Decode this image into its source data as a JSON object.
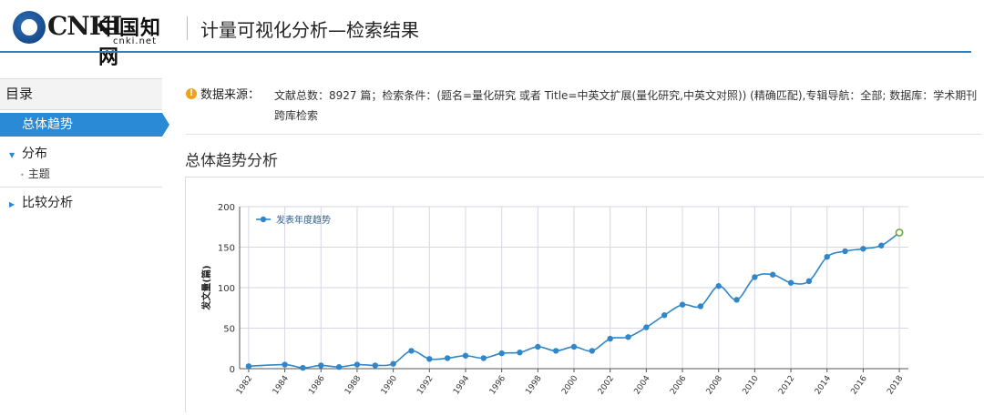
{
  "header": {
    "logo_text": "CNKI",
    "logo_cn": "中国知网",
    "logo_url": "cnki.net",
    "title": "计量可视化分析—检索结果"
  },
  "sidebar": {
    "title": "目录",
    "items": [
      {
        "label": "总体趋势",
        "active": true
      },
      {
        "label": "分布",
        "expanded": true,
        "children": [
          {
            "label": "主题"
          }
        ]
      },
      {
        "label": "比较分析",
        "expanded": false
      }
    ]
  },
  "source": {
    "label": "数据来源：",
    "text": "文献总数：8927 篇；检索条件：(题名=量化研究 或者 Title=中英文扩展(量化研究,中英文对照)) (精确匹配),专辑导航：全部; 数据库：学术期刊 跨库检索"
  },
  "section_title": "总体趋势分析",
  "colors": {
    "accent": "#2a8ad6",
    "line": "#2f86c8",
    "last_point": "#6aa83b",
    "grid": "#d6d6e6"
  },
  "chart_data": {
    "type": "line",
    "ylabel": "发文量(篇)",
    "ylim": [
      0,
      200
    ],
    "yticks": [
      0,
      50,
      100,
      150,
      200
    ],
    "xlim": [
      1981.5,
      2018.5
    ],
    "xticks": [
      "1982",
      "1984",
      "1986",
      "1988",
      "1990",
      "1992",
      "1994",
      "1996",
      "1998",
      "2000",
      "2002",
      "2004",
      "2006",
      "2008",
      "2010",
      "2012",
      "2014",
      "2016",
      "2018"
    ],
    "legend_position": "top-left",
    "grid": true,
    "series": [
      {
        "name": "发表年度趋势",
        "x": [
          1982,
          1984,
          1985,
          1986,
          1987,
          1988,
          1989,
          1990,
          1991,
          1992,
          1993,
          1994,
          1995,
          1996,
          1997,
          1998,
          1999,
          2000,
          2001,
          2002,
          2003,
          2004,
          2005,
          2006,
          2007,
          2008,
          2009,
          2010,
          2011,
          2012,
          2013,
          2014,
          2015,
          2016,
          2017,
          2018
        ],
        "y": [
          3,
          5,
          1,
          4,
          2,
          5,
          4,
          6,
          22,
          12,
          13,
          16,
          13,
          19,
          20,
          27,
          22,
          27,
          22,
          37,
          39,
          51,
          66,
          79,
          77,
          102,
          85,
          113,
          116,
          106,
          108,
          138,
          145,
          148,
          152,
          168
        ]
      }
    ]
  }
}
